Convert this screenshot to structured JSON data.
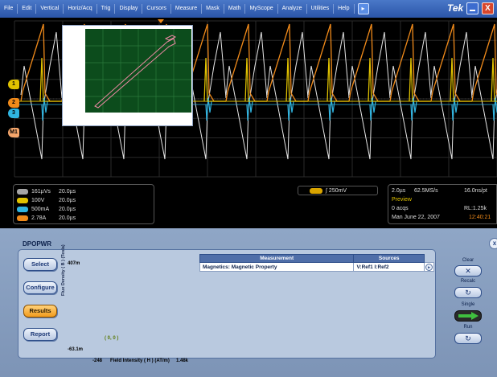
{
  "menubar": {
    "items": [
      "File",
      "Edit",
      "Vertical",
      "Horiz/Acq",
      "Trig",
      "Display",
      "Cursors",
      "Measure",
      "Mask",
      "Math",
      "MyScope",
      "Analyze",
      "Utilities",
      "Help"
    ],
    "brand": "Tek",
    "close_glyph": "X"
  },
  "channel_markers": {
    "m1": "M1",
    "c1": "1",
    "c2": "2",
    "c3": "3"
  },
  "channels": [
    {
      "id": "M1",
      "scale": "161µVs",
      "time": "20.0µs",
      "color": "#a5a5a5"
    },
    {
      "id": "R1",
      "scale": "100V",
      "time": "20.0µs",
      "color": "#e0c200"
    },
    {
      "id": "R2",
      "scale": "500mA",
      "time": "20.0µs",
      "color": "#2fb4e0"
    },
    {
      "id": "R3",
      "scale": "2.78A",
      "time": "20.0µs",
      "color": "#f08a1a"
    }
  ],
  "trigger": {
    "channel": "C4",
    "level": "250mV"
  },
  "acquisition": {
    "horizontal": "2.0µs",
    "rate": "62.5MS/s",
    "resolution": "16.0ns/pt",
    "mode": "Preview",
    "acqs": "0 acqs",
    "record_length": "RL:1.25k",
    "date": "Man   June 22, 2007",
    "time": "12:40:21"
  },
  "panel": {
    "tab_title": "DPOPWR",
    "buttons": [
      "Select",
      "Configure",
      "Results",
      "Report"
    ],
    "active_button": "Results"
  },
  "plot": {
    "y_max": "407m",
    "y_min": "-63.1m",
    "x_min": "-248",
    "x_max": "1.48k",
    "x_label": "Field Intensity ( H ) (AT/m)",
    "y_label": "Flux Density ( B ) (Tesla)",
    "origin_label": "( 0, 0 )"
  },
  "measurement_table": {
    "headers": [
      "Measurement",
      "Sources"
    ],
    "rows": [
      {
        "measurement": "Magnetics: Magnetic Property",
        "sources": "V:Ref1  I:Ref2"
      }
    ]
  },
  "controls": {
    "clear": "Clear",
    "recalc": "Recalc",
    "single": "Single",
    "run": "Run"
  },
  "colors": {
    "ch_yellow": "#e0c200",
    "ch_cyan": "#2fb4e0",
    "ch_orange": "#f08a1a",
    "ch_gray": "#a5a5a5"
  }
}
